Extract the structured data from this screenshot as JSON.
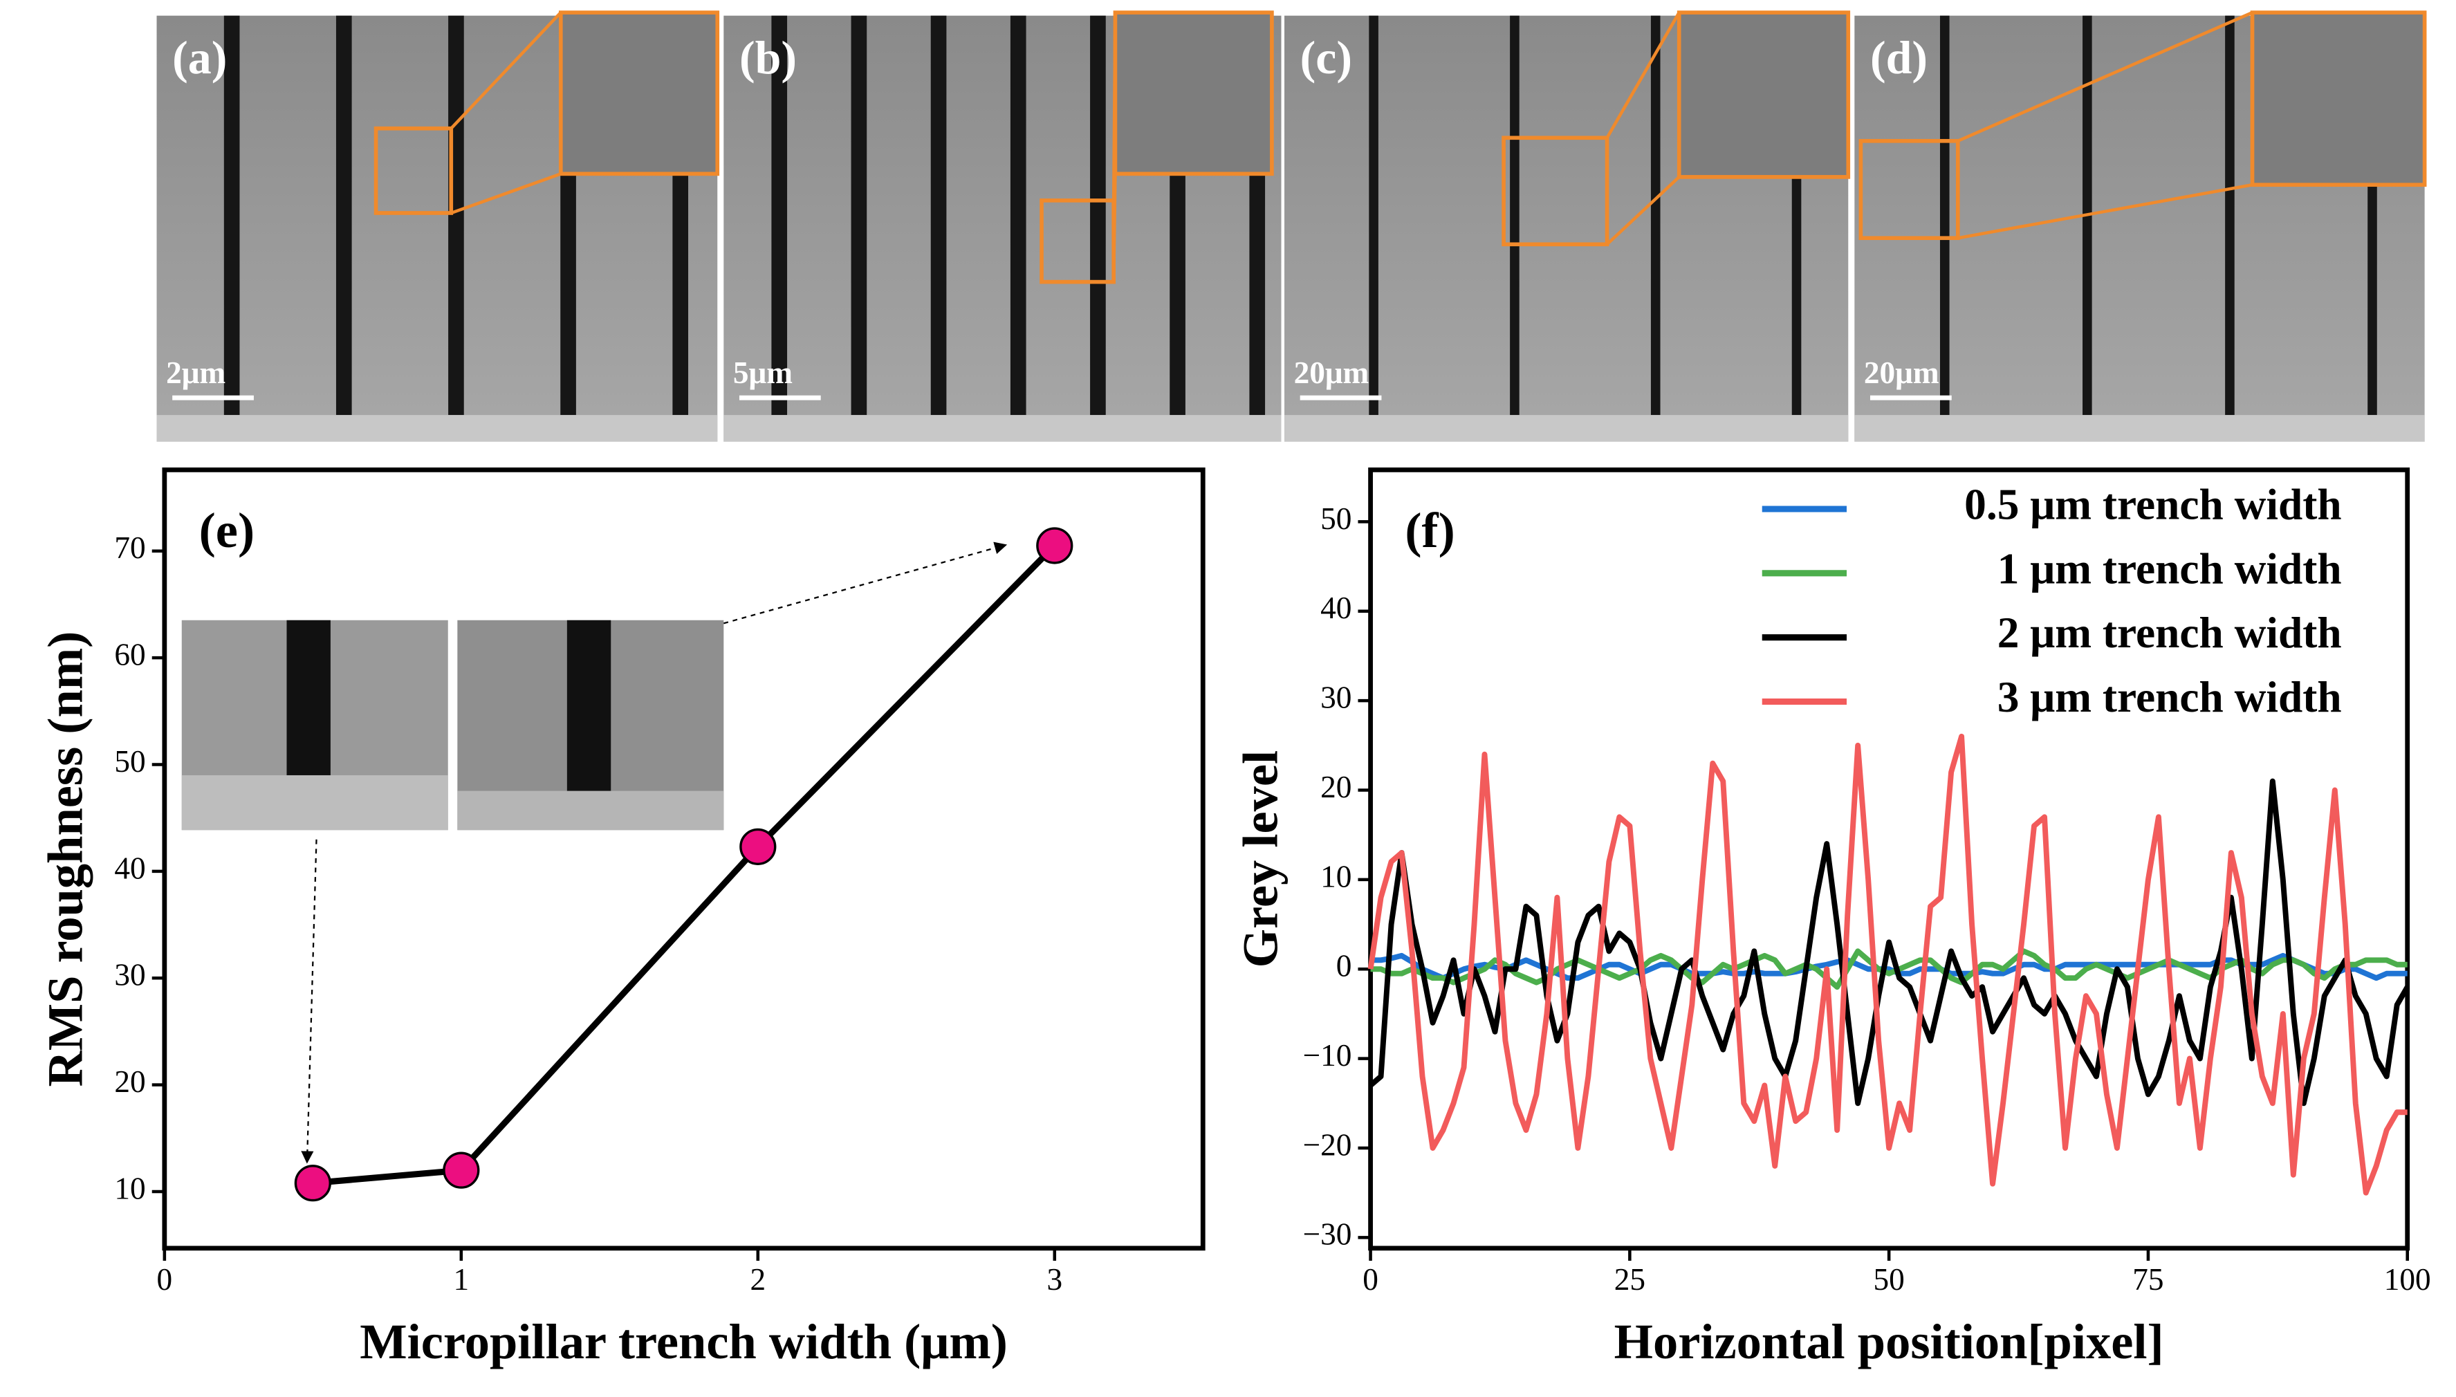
{
  "images": [
    {
      "label": "(a)",
      "scale": "2μm"
    },
    {
      "label": "(b)",
      "scale": "5μm"
    },
    {
      "label": "(c)",
      "scale": "20μm"
    },
    {
      "label": "(d)",
      "scale": "20μm"
    }
  ],
  "chart_data": [
    {
      "type": "line",
      "annotation": "(e)",
      "xlabel": "Micropillar trench width (μm)",
      "ylabel": "RMS roughness (nm)",
      "x": [
        0.5,
        1,
        2,
        3
      ],
      "values": [
        10.8,
        12,
        42.3,
        70.5
      ],
      "color": "#000000",
      "marker_color": "#ec0e80",
      "xlim": [
        0,
        3.5
      ],
      "xticks": [
        0,
        1,
        2,
        3
      ],
      "ylim": [
        4.7,
        77.6
      ],
      "yticks": [
        10,
        20,
        30,
        40,
        50,
        60,
        70
      ]
    },
    {
      "type": "multiline",
      "annotation": "(f)",
      "xlabel": "Horizontal position[pixel]",
      "ylabel": "Grey level",
      "legend": "upper right",
      "x": [
        0,
        1,
        2,
        3,
        4,
        5,
        6,
        7,
        8,
        9,
        10,
        11,
        12,
        13,
        14,
        15,
        16,
        17,
        18,
        19,
        20,
        21,
        22,
        23,
        24,
        25,
        26,
        27,
        28,
        29,
        30,
        31,
        32,
        33,
        34,
        35,
        36,
        37,
        38,
        39,
        40,
        41,
        42,
        43,
        44,
        45,
        46,
        47,
        48,
        49,
        50,
        51,
        52,
        53,
        54,
        55,
        56,
        57,
        58,
        59,
        60,
        61,
        62,
        63,
        64,
        65,
        66,
        67,
        68,
        69,
        70,
        71,
        72,
        73,
        74,
        75,
        76,
        77,
        78,
        79,
        80,
        81,
        82,
        83,
        84,
        85,
        86,
        87,
        88,
        89,
        90,
        91,
        92,
        93,
        94,
        95,
        96,
        97,
        98,
        99,
        100
      ],
      "series": [
        {
          "name": "0.5 μm trench width",
          "color": "#1f74d4",
          "values": [
            1,
            1,
            1.2,
            1.5,
            0.8,
            0,
            -0.5,
            -1,
            -0.5,
            0,
            0.3,
            0.5,
            0.2,
            0,
            0.5,
            1,
            0.5,
            0,
            -0.5,
            -1,
            -1,
            -0.5,
            0,
            0.5,
            0.5,
            0,
            -0.5,
            0,
            0.5,
            0.5,
            0,
            -0.5,
            -0.5,
            -0.5,
            -0.3,
            -0.5,
            -0.5,
            -0.3,
            -0.5,
            -0.5,
            -0.5,
            -0.3,
            0,
            0.3,
            0.5,
            0.8,
            1,
            0.5,
            0,
            0,
            0,
            -0.5,
            -0.5,
            0,
            0,
            0,
            -0.5,
            -0.5,
            -0.5,
            -0.3,
            -0.5,
            -0.5,
            0,
            0.5,
            0.5,
            0,
            0,
            0.5,
            0.5,
            0.5,
            0.5,
            0.5,
            0.5,
            0.5,
            0.5,
            0.5,
            0.5,
            0.5,
            0.5,
            0.5,
            0.5,
            0.5,
            1,
            1,
            0.5,
            0.5,
            0.5,
            1,
            1.5,
            1,
            0.5,
            0,
            -0.5,
            -0.5,
            0,
            0,
            -0.5,
            -1,
            -0.5,
            -0.5,
            -0.5
          ]
        },
        {
          "name": "1 μm trench width",
          "color": "#4cae4c",
          "values": [
            0,
            0,
            -0.5,
            -0.5,
            0,
            -0.5,
            -1,
            -1,
            -1.5,
            -1,
            -0.5,
            0,
            1,
            0.5,
            -0.5,
            -1,
            -1.5,
            -1,
            0,
            0.5,
            1,
            0.5,
            0,
            -0.5,
            -1,
            -0.5,
            0,
            1,
            1.5,
            1,
            0,
            -1,
            -1.5,
            -0.5,
            0.5,
            0,
            0.5,
            1,
            1.5,
            1,
            -0.5,
            0,
            0.5,
            0,
            -1,
            -2,
            0,
            2,
            1,
            0,
            -0.5,
            0,
            0.5,
            1,
            1,
            0,
            -1,
            -1.5,
            -0.5,
            0.5,
            0.5,
            0,
            1,
            2,
            1.5,
            0.5,
            0,
            -1,
            -1,
            0,
            0.5,
            0,
            -0.5,
            -1,
            -0.5,
            0,
            0.5,
            1,
            0.5,
            0,
            -0.5,
            -1,
            0,
            0.5,
            1,
            0,
            -0.5,
            0.5,
            1,
            1,
            0.5,
            -0.5,
            -1,
            0,
            0.5,
            0.5,
            1,
            1,
            1,
            0.5,
            0.5
          ]
        },
        {
          "name": "2 μm trench width",
          "color": "#000000",
          "values": [
            -13,
            -12,
            5,
            13,
            5,
            0,
            -6,
            -3,
            1,
            -5,
            0,
            -3,
            -7,
            0,
            0,
            7,
            6,
            -3,
            -8,
            -5,
            3,
            6,
            7,
            2,
            4,
            3,
            0,
            -6,
            -10,
            -5,
            0,
            1,
            -3,
            -6,
            -9,
            -5,
            -3,
            2,
            -5,
            -10,
            -12,
            -8,
            0,
            8,
            14,
            5,
            -5,
            -15,
            -10,
            -3,
            3,
            -1,
            -2,
            -5,
            -8,
            -3,
            2,
            -1,
            -3,
            -2,
            -7,
            -5,
            -3,
            -1,
            -4,
            -5,
            -3,
            -5,
            -8,
            -10,
            -12,
            -5,
            0,
            -2,
            -10,
            -14,
            -12,
            -8,
            -3,
            -8,
            -10,
            -2,
            2,
            8,
            0,
            -10,
            5,
            21,
            10,
            -5,
            -15,
            -10,
            -3,
            -1,
            1,
            -3,
            -5,
            -10,
            -12,
            -4,
            -2
          ]
        },
        {
          "name": "3 μm trench width",
          "color": "#f25b5b",
          "values": [
            0,
            8,
            12,
            13,
            2,
            -12,
            -20,
            -18,
            -15,
            -11,
            5,
            24,
            8,
            -8,
            -15,
            -18,
            -14,
            -5,
            8,
            -10,
            -20,
            -12,
            0,
            12,
            17,
            16,
            2,
            -10,
            -15,
            -20,
            -12,
            -4,
            10,
            23,
            21,
            2,
            -15,
            -17,
            -13,
            -22,
            -12,
            -17,
            -16,
            -10,
            0,
            -18,
            6,
            25,
            10,
            -8,
            -20,
            -15,
            -18,
            -5,
            7,
            8,
            22,
            26,
            5,
            -10,
            -24,
            -15,
            -5,
            5,
            16,
            17,
            -5,
            -20,
            -10,
            -3,
            -5,
            -14,
            -20,
            -10,
            0,
            10,
            17,
            0,
            -15,
            -10,
            -20,
            -10,
            -2,
            13,
            8,
            -5,
            -12,
            -15,
            -5,
            -23,
            -10,
            -5,
            8,
            20,
            5,
            -15,
            -25,
            -22,
            -18,
            -16,
            -16
          ]
        }
      ],
      "xlim": [
        0,
        100
      ],
      "xticks": [
        0,
        25,
        50,
        75,
        100
      ],
      "ylim": [
        -31.2,
        55.8
      ],
      "yticks": [
        {
          "value": -30,
          "label": "−30"
        },
        {
          "value": -20,
          "label": "−20"
        },
        {
          "value": -10,
          "label": "−10"
        },
        0,
        10,
        20,
        30,
        40,
        50
      ]
    }
  ]
}
